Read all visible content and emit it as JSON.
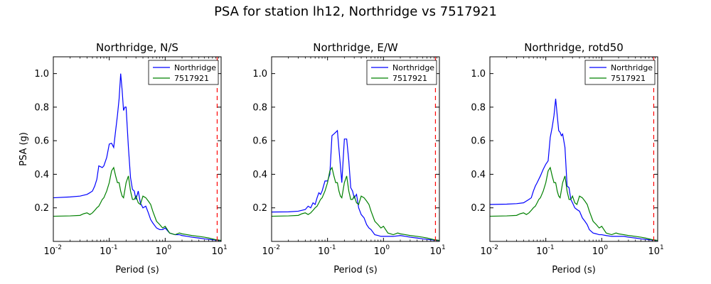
{
  "figure": {
    "title": "PSA for station lh12, Northridge vs 7517921"
  },
  "colors": {
    "series_1": "#0000ff",
    "series_2": "#008000",
    "reference_line": "#ff0000",
    "axes": "#000000"
  },
  "chart_data": [
    {
      "type": "line",
      "title": "Northridge, N/S",
      "xlabel": "Period (s)",
      "ylabel": "PSA (g)",
      "xscale": "log",
      "xlim": [
        0.01,
        10
      ],
      "ylim": [
        0,
        1.1
      ],
      "xticks": [
        0.01,
        0.1,
        1,
        10
      ],
      "xtick_labels": [
        {
          "base": "10",
          "exp": "-2"
        },
        {
          "base": "10",
          "exp": "-1"
        },
        {
          "base": "10",
          "exp": "0"
        },
        {
          "base": "10",
          "exp": "1"
        }
      ],
      "yticks": [
        0.2,
        0.4,
        0.6,
        0.8,
        1.0
      ],
      "ytick_labels": [
        "0.2",
        "0.4",
        "0.6",
        "0.8",
        "1.0"
      ],
      "grid": false,
      "legend_position": "top-right",
      "vline_x": 8.5,
      "series": [
        {
          "name": "Northridge",
          "x": [
            0.01,
            0.02,
            0.03,
            0.04,
            0.045,
            0.05,
            0.055,
            0.06,
            0.065,
            0.07,
            0.075,
            0.08,
            0.09,
            0.1,
            0.11,
            0.12,
            0.13,
            0.14,
            0.15,
            0.16,
            0.17,
            0.18,
            0.19,
            0.2,
            0.22,
            0.24,
            0.26,
            0.28,
            0.3,
            0.33,
            0.36,
            0.4,
            0.45,
            0.5,
            0.55,
            0.6,
            0.7,
            0.8,
            0.9,
            1.0,
            1.2,
            1.5,
            1.8,
            2.0,
            2.5,
            3.0,
            4.0,
            5.0,
            6.0,
            7.0,
            8.0,
            9.0,
            10.0
          ],
          "values": [
            0.26,
            0.265,
            0.27,
            0.28,
            0.29,
            0.3,
            0.33,
            0.37,
            0.45,
            0.445,
            0.44,
            0.45,
            0.5,
            0.58,
            0.585,
            0.56,
            0.66,
            0.75,
            0.85,
            1.0,
            0.9,
            0.78,
            0.8,
            0.8,
            0.56,
            0.38,
            0.31,
            0.3,
            0.25,
            0.3,
            0.23,
            0.2,
            0.21,
            0.17,
            0.13,
            0.11,
            0.08,
            0.07,
            0.07,
            0.08,
            0.05,
            0.04,
            0.04,
            0.035,
            0.03,
            0.025,
            0.02,
            0.015,
            0.012,
            0.01,
            0.008,
            0.006,
            0.005
          ]
        },
        {
          "name": "7517921",
          "x": [
            0.01,
            0.02,
            0.03,
            0.035,
            0.04,
            0.045,
            0.05,
            0.055,
            0.06,
            0.065,
            0.07,
            0.075,
            0.08,
            0.09,
            0.1,
            0.11,
            0.12,
            0.13,
            0.14,
            0.15,
            0.16,
            0.17,
            0.18,
            0.2,
            0.22,
            0.24,
            0.26,
            0.28,
            0.3,
            0.33,
            0.36,
            0.4,
            0.45,
            0.5,
            0.55,
            0.6,
            0.7,
            0.8,
            0.9,
            1.0,
            1.2,
            1.5,
            1.8,
            2.0,
            2.5,
            3.0,
            4.0,
            5.0,
            6.0,
            7.0,
            8.0,
            9.0,
            10.0
          ],
          "values": [
            0.15,
            0.152,
            0.155,
            0.165,
            0.17,
            0.16,
            0.17,
            0.185,
            0.2,
            0.21,
            0.23,
            0.25,
            0.26,
            0.3,
            0.35,
            0.42,
            0.44,
            0.39,
            0.35,
            0.35,
            0.3,
            0.27,
            0.26,
            0.35,
            0.39,
            0.3,
            0.25,
            0.25,
            0.27,
            0.23,
            0.22,
            0.27,
            0.26,
            0.24,
            0.22,
            0.18,
            0.12,
            0.1,
            0.08,
            0.09,
            0.05,
            0.04,
            0.05,
            0.045,
            0.04,
            0.035,
            0.03,
            0.025,
            0.02,
            0.015,
            0.01,
            0.008,
            0.006
          ]
        }
      ]
    },
    {
      "type": "line",
      "title": "Northridge, E/W",
      "xlabel": "Period (s)",
      "ylabel": "",
      "xscale": "log",
      "xlim": [
        0.01,
        10
      ],
      "ylim": [
        0,
        1.1
      ],
      "xticks": [
        0.01,
        0.1,
        1,
        10
      ],
      "xtick_labels": [
        {
          "base": "10",
          "exp": "-2"
        },
        {
          "base": "10",
          "exp": "-1"
        },
        {
          "base": "10",
          "exp": "0"
        },
        {
          "base": "10",
          "exp": "1"
        }
      ],
      "yticks": [
        0.2,
        0.4,
        0.6,
        0.8,
        1.0
      ],
      "ytick_labels": [
        "0.2",
        "0.4",
        "0.6",
        "0.8",
        "1.0"
      ],
      "grid": false,
      "legend_position": "top-right",
      "vline_x": 8.5,
      "series": [
        {
          "name": "Northridge",
          "x": [
            0.01,
            0.02,
            0.03,
            0.04,
            0.045,
            0.05,
            0.055,
            0.06,
            0.065,
            0.07,
            0.075,
            0.08,
            0.09,
            0.1,
            0.11,
            0.12,
            0.13,
            0.14,
            0.15,
            0.16,
            0.17,
            0.18,
            0.2,
            0.22,
            0.24,
            0.26,
            0.28,
            0.3,
            0.33,
            0.36,
            0.4,
            0.45,
            0.5,
            0.55,
            0.6,
            0.7,
            0.8,
            0.9,
            1.0,
            1.2,
            1.5,
            2.0,
            2.5,
            3.0,
            4.0,
            5.0,
            6.0,
            7.0,
            8.0,
            10.0
          ],
          "values": [
            0.175,
            0.176,
            0.18,
            0.19,
            0.21,
            0.2,
            0.23,
            0.22,
            0.26,
            0.29,
            0.28,
            0.3,
            0.36,
            0.36,
            0.4,
            0.63,
            0.64,
            0.65,
            0.66,
            0.55,
            0.45,
            0.35,
            0.61,
            0.61,
            0.48,
            0.32,
            0.3,
            0.26,
            0.28,
            0.2,
            0.16,
            0.14,
            0.1,
            0.08,
            0.07,
            0.04,
            0.035,
            0.03,
            0.03,
            0.03,
            0.03,
            0.035,
            0.03,
            0.025,
            0.02,
            0.015,
            0.012,
            0.01,
            0.008,
            0.005
          ]
        },
        {
          "name": "7517921",
          "x": [
            0.01,
            0.02,
            0.03,
            0.035,
            0.04,
            0.045,
            0.05,
            0.055,
            0.06,
            0.065,
            0.07,
            0.075,
            0.08,
            0.09,
            0.1,
            0.11,
            0.12,
            0.13,
            0.14,
            0.15,
            0.16,
            0.17,
            0.18,
            0.2,
            0.22,
            0.24,
            0.26,
            0.28,
            0.3,
            0.33,
            0.36,
            0.4,
            0.45,
            0.5,
            0.55,
            0.6,
            0.7,
            0.8,
            0.9,
            1.0,
            1.2,
            1.5,
            1.8,
            2.0,
            2.5,
            3.0,
            4.0,
            5.0,
            6.0,
            7.0,
            8.0,
            9.0,
            10.0
          ],
          "values": [
            0.15,
            0.152,
            0.155,
            0.165,
            0.17,
            0.16,
            0.17,
            0.185,
            0.2,
            0.21,
            0.23,
            0.25,
            0.26,
            0.3,
            0.35,
            0.42,
            0.44,
            0.39,
            0.35,
            0.35,
            0.3,
            0.27,
            0.26,
            0.35,
            0.39,
            0.3,
            0.25,
            0.25,
            0.27,
            0.23,
            0.22,
            0.27,
            0.26,
            0.24,
            0.22,
            0.18,
            0.12,
            0.1,
            0.08,
            0.09,
            0.05,
            0.04,
            0.05,
            0.045,
            0.04,
            0.035,
            0.03,
            0.025,
            0.02,
            0.015,
            0.01,
            0.008,
            0.006
          ]
        }
      ]
    },
    {
      "type": "line",
      "title": "Northridge, rotd50",
      "xlabel": "Period (s)",
      "ylabel": "",
      "xscale": "log",
      "xlim": [
        0.01,
        10
      ],
      "ylim": [
        0,
        1.1
      ],
      "xticks": [
        0.01,
        0.1,
        1,
        10
      ],
      "xtick_labels": [
        {
          "base": "10",
          "exp": "-2"
        },
        {
          "base": "10",
          "exp": "-1"
        },
        {
          "base": "10",
          "exp": "0"
        },
        {
          "base": "10",
          "exp": "1"
        }
      ],
      "yticks": [
        0.2,
        0.4,
        0.6,
        0.8,
        1.0
      ],
      "ytick_labels": [
        "0.2",
        "0.4",
        "0.6",
        "0.8",
        "1.0"
      ],
      "grid": false,
      "legend_position": "top-right",
      "vline_x": 8.5,
      "series": [
        {
          "name": "Northridge",
          "x": [
            0.01,
            0.02,
            0.03,
            0.04,
            0.05,
            0.055,
            0.06,
            0.065,
            0.07,
            0.08,
            0.09,
            0.1,
            0.11,
            0.12,
            0.13,
            0.14,
            0.15,
            0.16,
            0.17,
            0.18,
            0.19,
            0.2,
            0.22,
            0.24,
            0.26,
            0.28,
            0.3,
            0.33,
            0.36,
            0.4,
            0.45,
            0.5,
            0.55,
            0.6,
            0.7,
            0.8,
            0.9,
            1.0,
            1.2,
            1.5,
            2.0,
            2.5,
            3.0,
            4.0,
            5.0,
            6.0,
            7.0,
            8.0,
            10.0
          ],
          "values": [
            0.22,
            0.222,
            0.225,
            0.23,
            0.25,
            0.26,
            0.3,
            0.33,
            0.35,
            0.39,
            0.43,
            0.46,
            0.48,
            0.62,
            0.68,
            0.75,
            0.85,
            0.75,
            0.66,
            0.65,
            0.63,
            0.64,
            0.56,
            0.33,
            0.32,
            0.25,
            0.23,
            0.2,
            0.19,
            0.18,
            0.14,
            0.12,
            0.1,
            0.07,
            0.05,
            0.045,
            0.04,
            0.04,
            0.035,
            0.03,
            0.03,
            0.03,
            0.025,
            0.02,
            0.015,
            0.012,
            0.01,
            0.008,
            0.005
          ]
        },
        {
          "name": "7517921",
          "x": [
            0.01,
            0.02,
            0.03,
            0.035,
            0.04,
            0.045,
            0.05,
            0.055,
            0.06,
            0.065,
            0.07,
            0.075,
            0.08,
            0.09,
            0.1,
            0.11,
            0.12,
            0.13,
            0.14,
            0.15,
            0.16,
            0.17,
            0.18,
            0.2,
            0.22,
            0.24,
            0.26,
            0.28,
            0.3,
            0.33,
            0.36,
            0.4,
            0.45,
            0.5,
            0.55,
            0.6,
            0.7,
            0.8,
            0.9,
            1.0,
            1.2,
            1.5,
            1.8,
            2.0,
            2.5,
            3.0,
            4.0,
            5.0,
            6.0,
            7.0,
            8.0,
            9.0,
            10.0
          ],
          "values": [
            0.15,
            0.152,
            0.155,
            0.165,
            0.17,
            0.16,
            0.17,
            0.185,
            0.2,
            0.21,
            0.23,
            0.25,
            0.26,
            0.3,
            0.35,
            0.42,
            0.44,
            0.39,
            0.35,
            0.35,
            0.3,
            0.27,
            0.26,
            0.35,
            0.39,
            0.3,
            0.25,
            0.25,
            0.27,
            0.23,
            0.22,
            0.27,
            0.26,
            0.24,
            0.22,
            0.18,
            0.12,
            0.1,
            0.08,
            0.09,
            0.05,
            0.04,
            0.05,
            0.045,
            0.04,
            0.035,
            0.03,
            0.025,
            0.02,
            0.015,
            0.01,
            0.008,
            0.006
          ]
        }
      ]
    }
  ]
}
